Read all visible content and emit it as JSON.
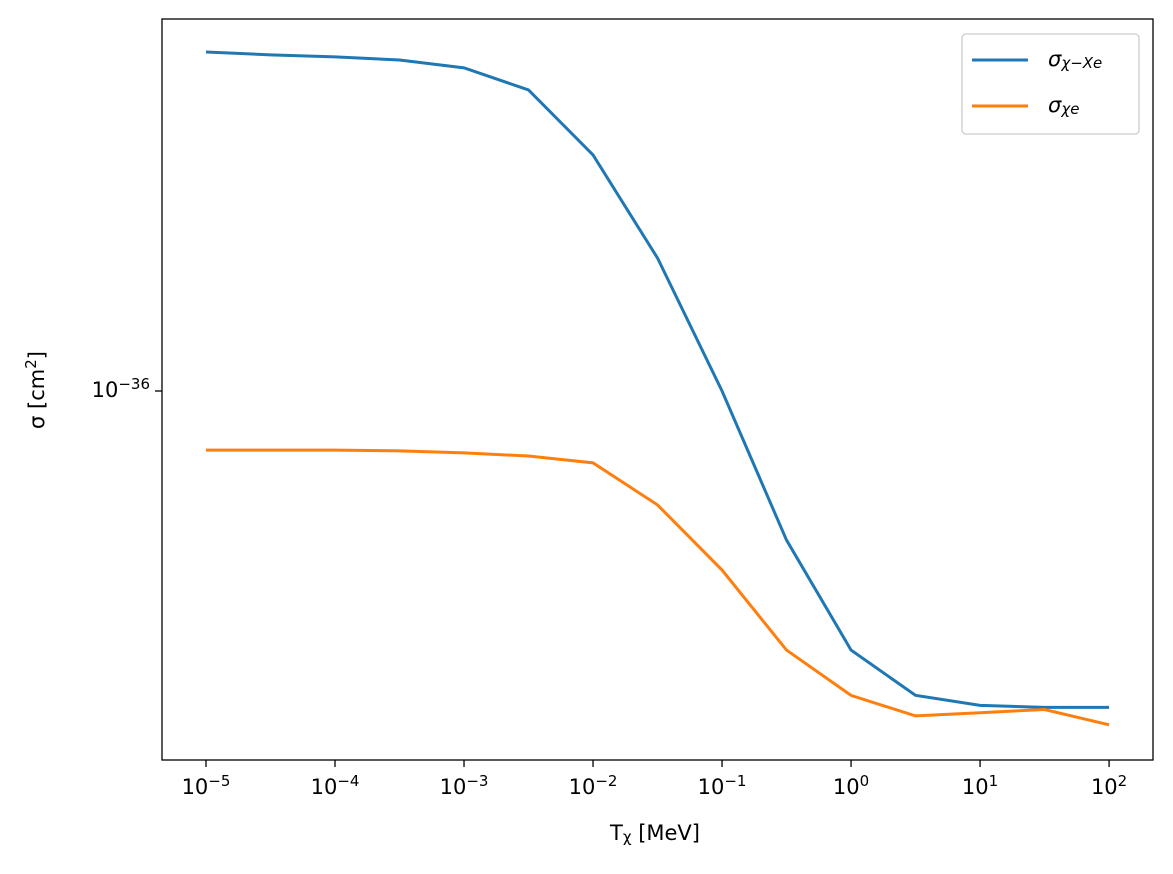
{
  "chart_data": {
    "type": "line",
    "xlabel": "T_{χ} [MeV]",
    "ylabel": "σ [cm^{2}]",
    "xscale": "log",
    "yscale": "log",
    "x": [
      1e-05,
      3.16e-05,
      0.0001,
      0.000316,
      0.001,
      0.00316,
      0.01,
      0.0316,
      0.1,
      0.316,
      1,
      3.16,
      10,
      31.6,
      100
    ],
    "series": [
      {
        "name": "σ_{χ−Xe}",
        "color": "#1f77b4",
        "values": [
          6.47e-36,
          6.37e-36,
          6.3e-36,
          6.19e-36,
          5.93e-36,
          5.25e-36,
          3.67e-36,
          2.08e-36,
          1e-36,
          4.4e-37,
          2.4e-37,
          1.87e-37,
          1.77e-37,
          1.75e-37,
          1.75e-37
        ]
      },
      {
        "name": "σ_{χe}",
        "color": "#ff7f0e",
        "values": [
          7.22e-37,
          7.22e-37,
          7.22e-37,
          7.19e-37,
          7.11e-37,
          6.99e-37,
          6.73e-37,
          5.34e-37,
          3.73e-37,
          2.4e-37,
          1.87e-37,
          1.67e-37,
          1.7e-37,
          1.73e-37,
          1.59e-37
        ]
      }
    ],
    "xlim": [
      4.56e-06,
      219
    ],
    "ylim": [
      1.31e-37,
      7.76e-36
    ],
    "xticks": [
      {
        "value": 1e-05,
        "label": "10^{−5}"
      },
      {
        "value": 0.0001,
        "label": "10^{−4}"
      },
      {
        "value": 0.001,
        "label": "10^{−3}"
      },
      {
        "value": 0.01,
        "label": "10^{−2}"
      },
      {
        "value": 0.1,
        "label": "10^{−1}"
      },
      {
        "value": 1,
        "label": "10^{0}"
      },
      {
        "value": 10,
        "label": "10^{1}"
      },
      {
        "value": 100,
        "label": "10^{2}"
      }
    ],
    "yticks": [
      {
        "value": 1e-36,
        "label": "10^{−36}"
      }
    ],
    "legend": "upper right"
  }
}
